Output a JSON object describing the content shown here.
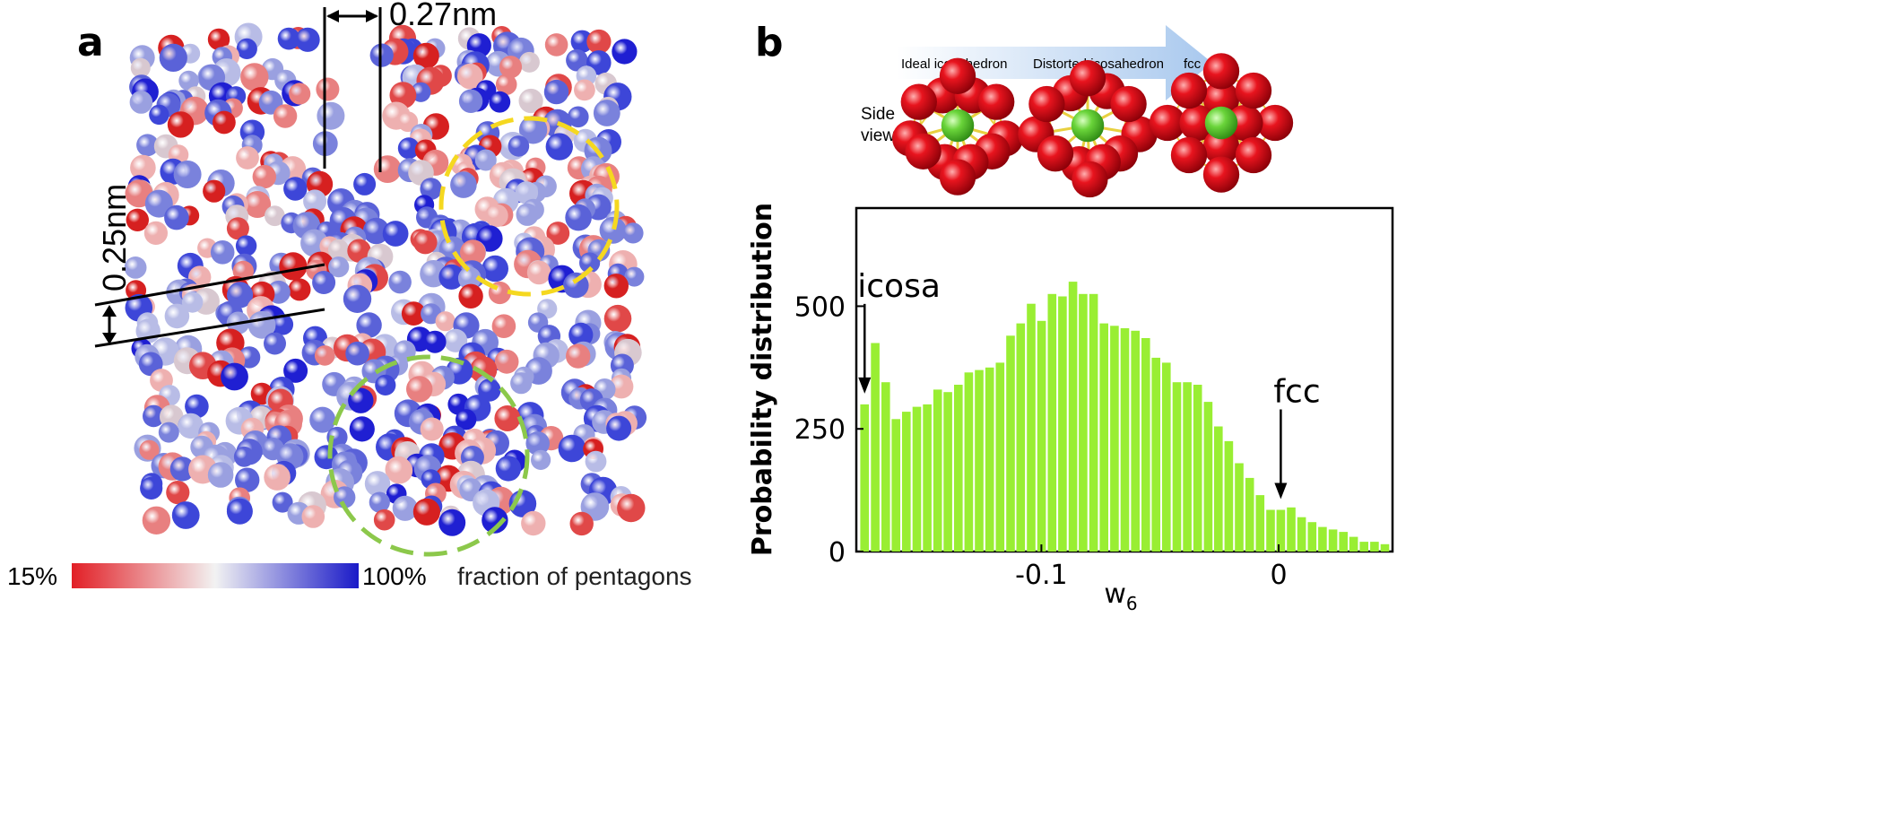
{
  "panel_a": {
    "label": "a",
    "top_measure": "0.27nm",
    "side_measure": "0.25nm",
    "colorbar": {
      "min_label": "15%",
      "max_label": "100%",
      "caption": "fraction of pentagons",
      "low_color": "#e21f26",
      "mid_color": "#f2f2f2",
      "high_color": "#1a1ac8"
    },
    "yellow_circle_color": "#f5d820",
    "green_circle_color": "#8cc84b"
  },
  "panel_b": {
    "label": "b",
    "arrow_labels": [
      "Ideal icosahedron",
      "Distorted icosahedron",
      "fcc"
    ],
    "side_view_label": [
      "Side",
      "view"
    ],
    "atom_outer_color": "#e0141e",
    "atom_center_color": "#6ad43a",
    "bond_color": "#e8d040",
    "arrow_color": "#a8c8ee"
  },
  "chart_data": {
    "type": "bar",
    "title": "",
    "xlabel": "w6",
    "xlabel_main": "w",
    "xlabel_sub": "6",
    "ylabel": "Probability distribution",
    "xlim": [
      -0.178,
      0.048
    ],
    "ylim": [
      0,
      700
    ],
    "bar_width": 0.0044,
    "bar_color": "#99ee33",
    "x_ticks": [
      {
        "value": -0.1,
        "label": "-0.1"
      },
      {
        "value": 0,
        "label": "0"
      }
    ],
    "y_ticks": [
      {
        "value": 0,
        "label": "0"
      },
      {
        "value": 250,
        "label": "250"
      },
      {
        "value": 500,
        "label": "500"
      }
    ],
    "x": [
      -0.1745,
      -0.17,
      -0.1656,
      -0.1613,
      -0.1569,
      -0.1525,
      -0.1481,
      -0.1437,
      -0.1394,
      -0.135,
      -0.1306,
      -0.1262,
      -0.1218,
      -0.1174,
      -0.113,
      -0.1087,
      -0.1043,
      -0.0999,
      -0.0955,
      -0.0911,
      -0.0867,
      -0.0824,
      -0.078,
      -0.0736,
      -0.0692,
      -0.0648,
      -0.0604,
      -0.056,
      -0.0517,
      -0.0473,
      -0.0429,
      -0.0385,
      -0.0341,
      -0.0297,
      -0.0254,
      -0.021,
      -0.0166,
      -0.0122,
      -0.0078,
      -0.0034,
      0.0009,
      0.0053,
      0.0097,
      0.0141,
      0.0185,
      0.0229,
      0.0273,
      0.0316,
      0.036,
      0.0404,
      0.0448
    ],
    "values": [
      300,
      425,
      345,
      270,
      285,
      295,
      300,
      330,
      325,
      340,
      365,
      370,
      375,
      385,
      440,
      465,
      505,
      470,
      525,
      520,
      550,
      525,
      525,
      465,
      460,
      455,
      450,
      435,
      395,
      385,
      345,
      345,
      340,
      305,
      255,
      225,
      180,
      150,
      115,
      85,
      85,
      90,
      70,
      60,
      50,
      45,
      40,
      30,
      20,
      20,
      15
    ],
    "annotations": [
      {
        "text": "icosa",
        "x": -0.1745,
        "y": 300
      },
      {
        "text": "fcc",
        "x": 0.0009,
        "y": 85
      }
    ]
  }
}
